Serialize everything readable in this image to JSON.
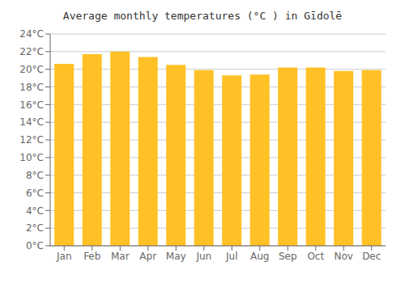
{
  "chart_data": {
    "type": "bar",
    "title": "Average monthly temperatures (°C ) in Gīdolē",
    "categories": [
      "Jan",
      "Feb",
      "Mar",
      "Apr",
      "May",
      "Jun",
      "Jul",
      "Aug",
      "Sep",
      "Oct",
      "Nov",
      "Dec"
    ],
    "values": [
      20.6,
      21.7,
      22.0,
      21.4,
      20.5,
      19.9,
      19.3,
      19.4,
      20.2,
      20.2,
      19.8,
      19.9
    ],
    "color": "#FFC125",
    "ylim": [
      0,
      24
    ],
    "yticks": [
      {
        "value": 0,
        "label": "0°C"
      },
      {
        "value": 2,
        "label": "2°C"
      },
      {
        "value": 4,
        "label": "4°C"
      },
      {
        "value": 6,
        "label": "6°C"
      },
      {
        "value": 8,
        "label": "8°C"
      },
      {
        "value": 10,
        "label": "10°C"
      },
      {
        "value": 12,
        "label": "12°C"
      },
      {
        "value": 14,
        "label": "14°C"
      },
      {
        "value": 16,
        "label": "16°C"
      },
      {
        "value": 18,
        "label": "18°C"
      },
      {
        "value": 20,
        "label": "20°C"
      },
      {
        "value": 22,
        "label": "22°C"
      },
      {
        "value": 24,
        "label": "24°C"
      }
    ],
    "grid": true
  }
}
